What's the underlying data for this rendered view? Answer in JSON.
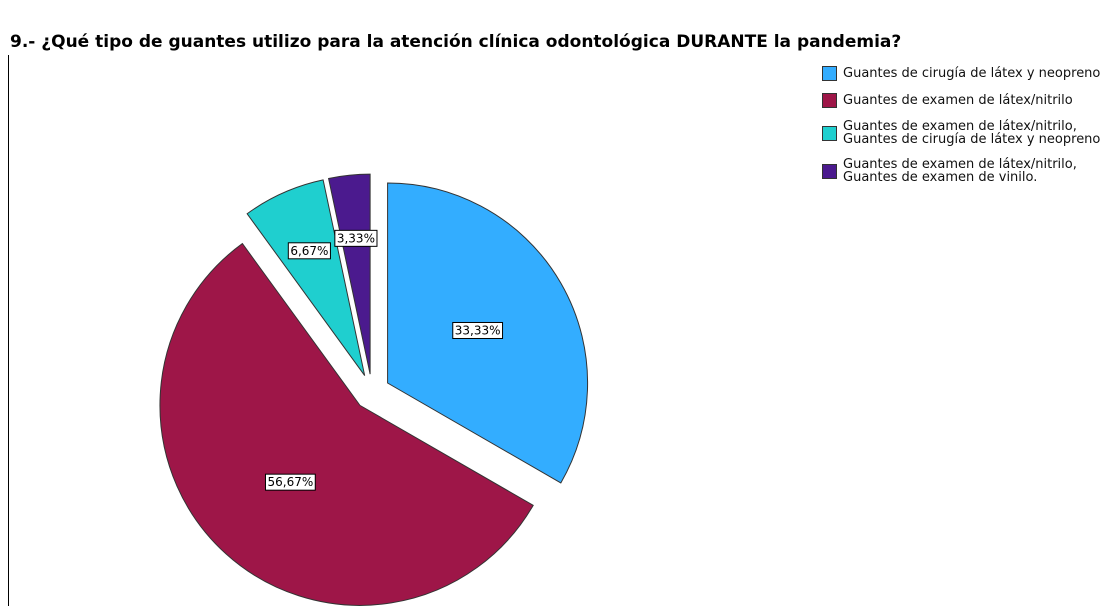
{
  "chart_data": {
    "type": "pie",
    "title": "9.- ¿Qué tipo de guantes utilizo para la atención clínica odontológica DURANTE la pandemia?",
    "categories": [
      "Guantes de cirugía de látex y neopreno",
      "Guantes de examen de látex/nitrilo",
      "Guantes de examen de látex/nitrilo, Guantes de cirugía de látex y neopreno",
      "Guantes de examen de látex/nitrilo, Guantes de examen de vinilo."
    ],
    "values": [
      33.33,
      56.67,
      6.67,
      3.33
    ],
    "value_labels": [
      "33,33%",
      "56,67%",
      "6,67%",
      "3,33%"
    ],
    "colors": [
      "#33adff",
      "#9e1648",
      "#1fcfcf",
      "#4b1a8e"
    ],
    "legend": "right"
  }
}
